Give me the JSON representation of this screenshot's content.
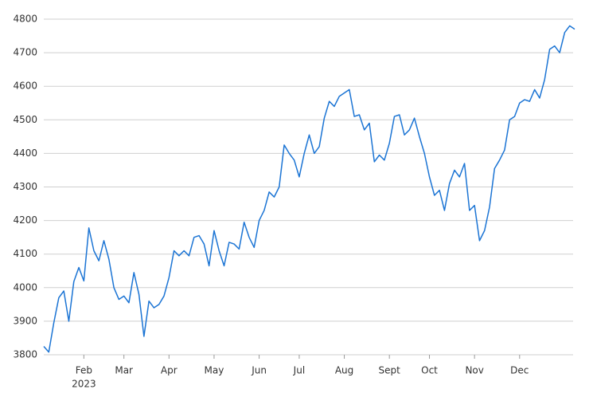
{
  "chart_data": {
    "type": "line",
    "categories": [
      null,
      null,
      null,
      null,
      null,
      null,
      null,
      null,
      "Feb",
      null,
      null,
      null,
      null,
      null,
      null,
      null,
      "Mar",
      null,
      null,
      null,
      null,
      null,
      null,
      null,
      null,
      "Apr",
      null,
      null,
      null,
      null,
      null,
      null,
      null,
      null,
      "May",
      null,
      null,
      null,
      null,
      null,
      null,
      null,
      null,
      "Jun",
      null,
      null,
      null,
      null,
      null,
      null,
      null,
      "Jul",
      null,
      null,
      null,
      null,
      null,
      null,
      null,
      null,
      "Aug",
      null,
      null,
      null,
      null,
      null,
      null,
      null,
      null,
      "Sept",
      null,
      null,
      null,
      null,
      null,
      null,
      null,
      "Oct",
      null,
      null,
      null,
      null,
      null,
      null,
      null,
      null,
      "Nov",
      null,
      null,
      null,
      null,
      null,
      null,
      null,
      null,
      "Dec",
      null,
      null,
      null,
      null,
      null,
      null,
      null,
      null,
      null,
      null,
      null
    ],
    "year_label": "2023",
    "series": [
      {
        "color": "#1b74d4",
        "values": [
          3825,
          3808,
          3895,
          3970,
          3990,
          3900,
          4018,
          4060,
          4020,
          4178,
          4110,
          4080,
          4140,
          4085,
          4000,
          3965,
          3975,
          3955,
          4045,
          3980,
          3855,
          3960,
          3940,
          3950,
          3975,
          4030,
          4110,
          4095,
          4110,
          4095,
          4150,
          4155,
          4130,
          4065,
          4170,
          4110,
          4065,
          4135,
          4130,
          4115,
          4195,
          4150,
          4120,
          4200,
          4230,
          4285,
          4270,
          4300,
          4425,
          4400,
          4380,
          4330,
          4400,
          4455,
          4400,
          4420,
          4505,
          4555,
          4540,
          4570,
          4580,
          4590,
          4510,
          4515,
          4470,
          4490,
          4375,
          4395,
          4380,
          4430,
          4510,
          4515,
          4455,
          4470,
          4505,
          4450,
          4400,
          4330,
          4275,
          4290,
          4230,
          4310,
          4350,
          4330,
          4370,
          4230,
          4245,
          4140,
          4170,
          4240,
          4355,
          4380,
          4410,
          4500,
          4510,
          4550,
          4560,
          4555,
          4590,
          4565,
          4620,
          4710,
          4720,
          4700,
          4760,
          4780,
          4770
        ]
      }
    ],
    "ylim": [
      3800,
      4800
    ],
    "yticks": [
      3800,
      3900,
      4000,
      4100,
      4200,
      4300,
      4400,
      4500,
      4600,
      4700,
      4800
    ],
    "grid": true
  }
}
